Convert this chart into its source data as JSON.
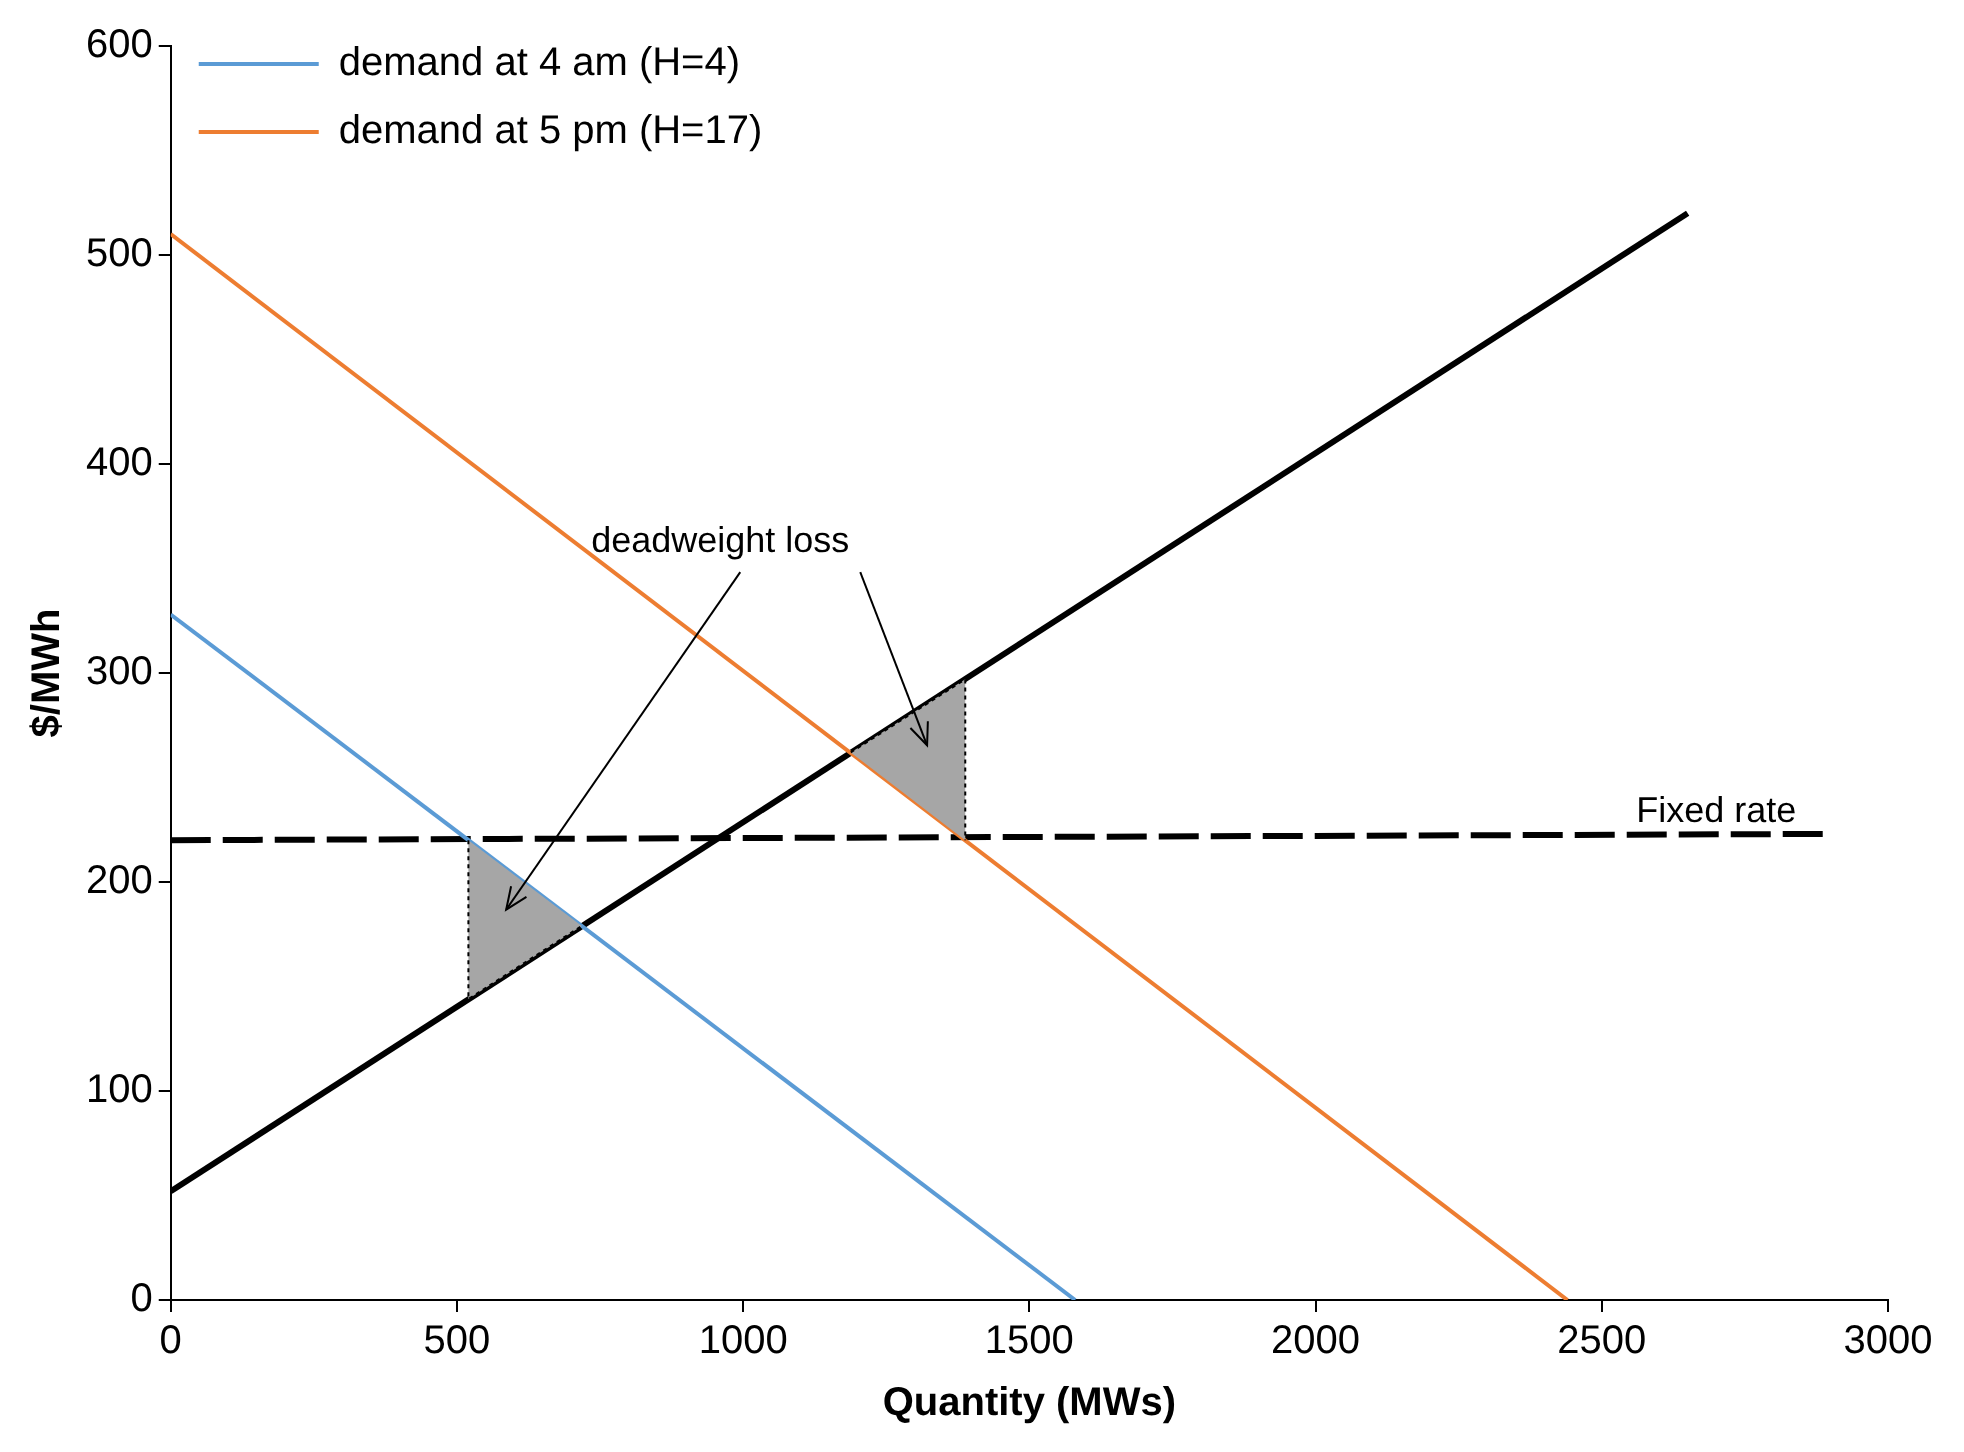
{
  "chart_data": {
    "type": "line",
    "xlabel": "Quantity (MWs)",
    "ylabel": "$/MWh",
    "xlim": [
      0,
      3000
    ],
    "xticks": [
      0,
      500,
      1000,
      1500,
      2000,
      2500,
      3000
    ],
    "ylim": [
      0,
      600
    ],
    "yticks": [
      0,
      100,
      200,
      300,
      400,
      500,
      600
    ],
    "grid": false,
    "legend": "top left",
    "marker": "none",
    "series": [
      {
        "type": "area",
        "color": "#a6a6a6",
        "x": [
          520,
          520,
          718
        ],
        "values": [
          220,
          144,
          179
        ]
      },
      {
        "type": "area",
        "color": "#a6a6a6",
        "x": [
          1188,
          1388,
          1388
        ],
        "values": [
          262,
          297,
          220
        ]
      },
      {
        "name": "demand at 4 am (H=4)",
        "color": "#5b9bd5",
        "x": [
          0,
          1580
        ],
        "values": [
          328,
          0
        ]
      },
      {
        "name": "demand at 5 pm (H=17)",
        "color": "#ed7d31",
        "x": [
          0,
          2440
        ],
        "values": [
          510,
          0
        ]
      },
      {
        "color": "#000000",
        "x": [
          0,
          2650
        ],
        "values": [
          52,
          520
        ]
      },
      {
        "color": "#000000",
        "line_style": "dashed",
        "x": [
          0,
          2900
        ],
        "values": [
          220,
          223
        ]
      }
    ],
    "annotations": [
      "deadweight loss",
      "Fixed rate"
    ]
  }
}
